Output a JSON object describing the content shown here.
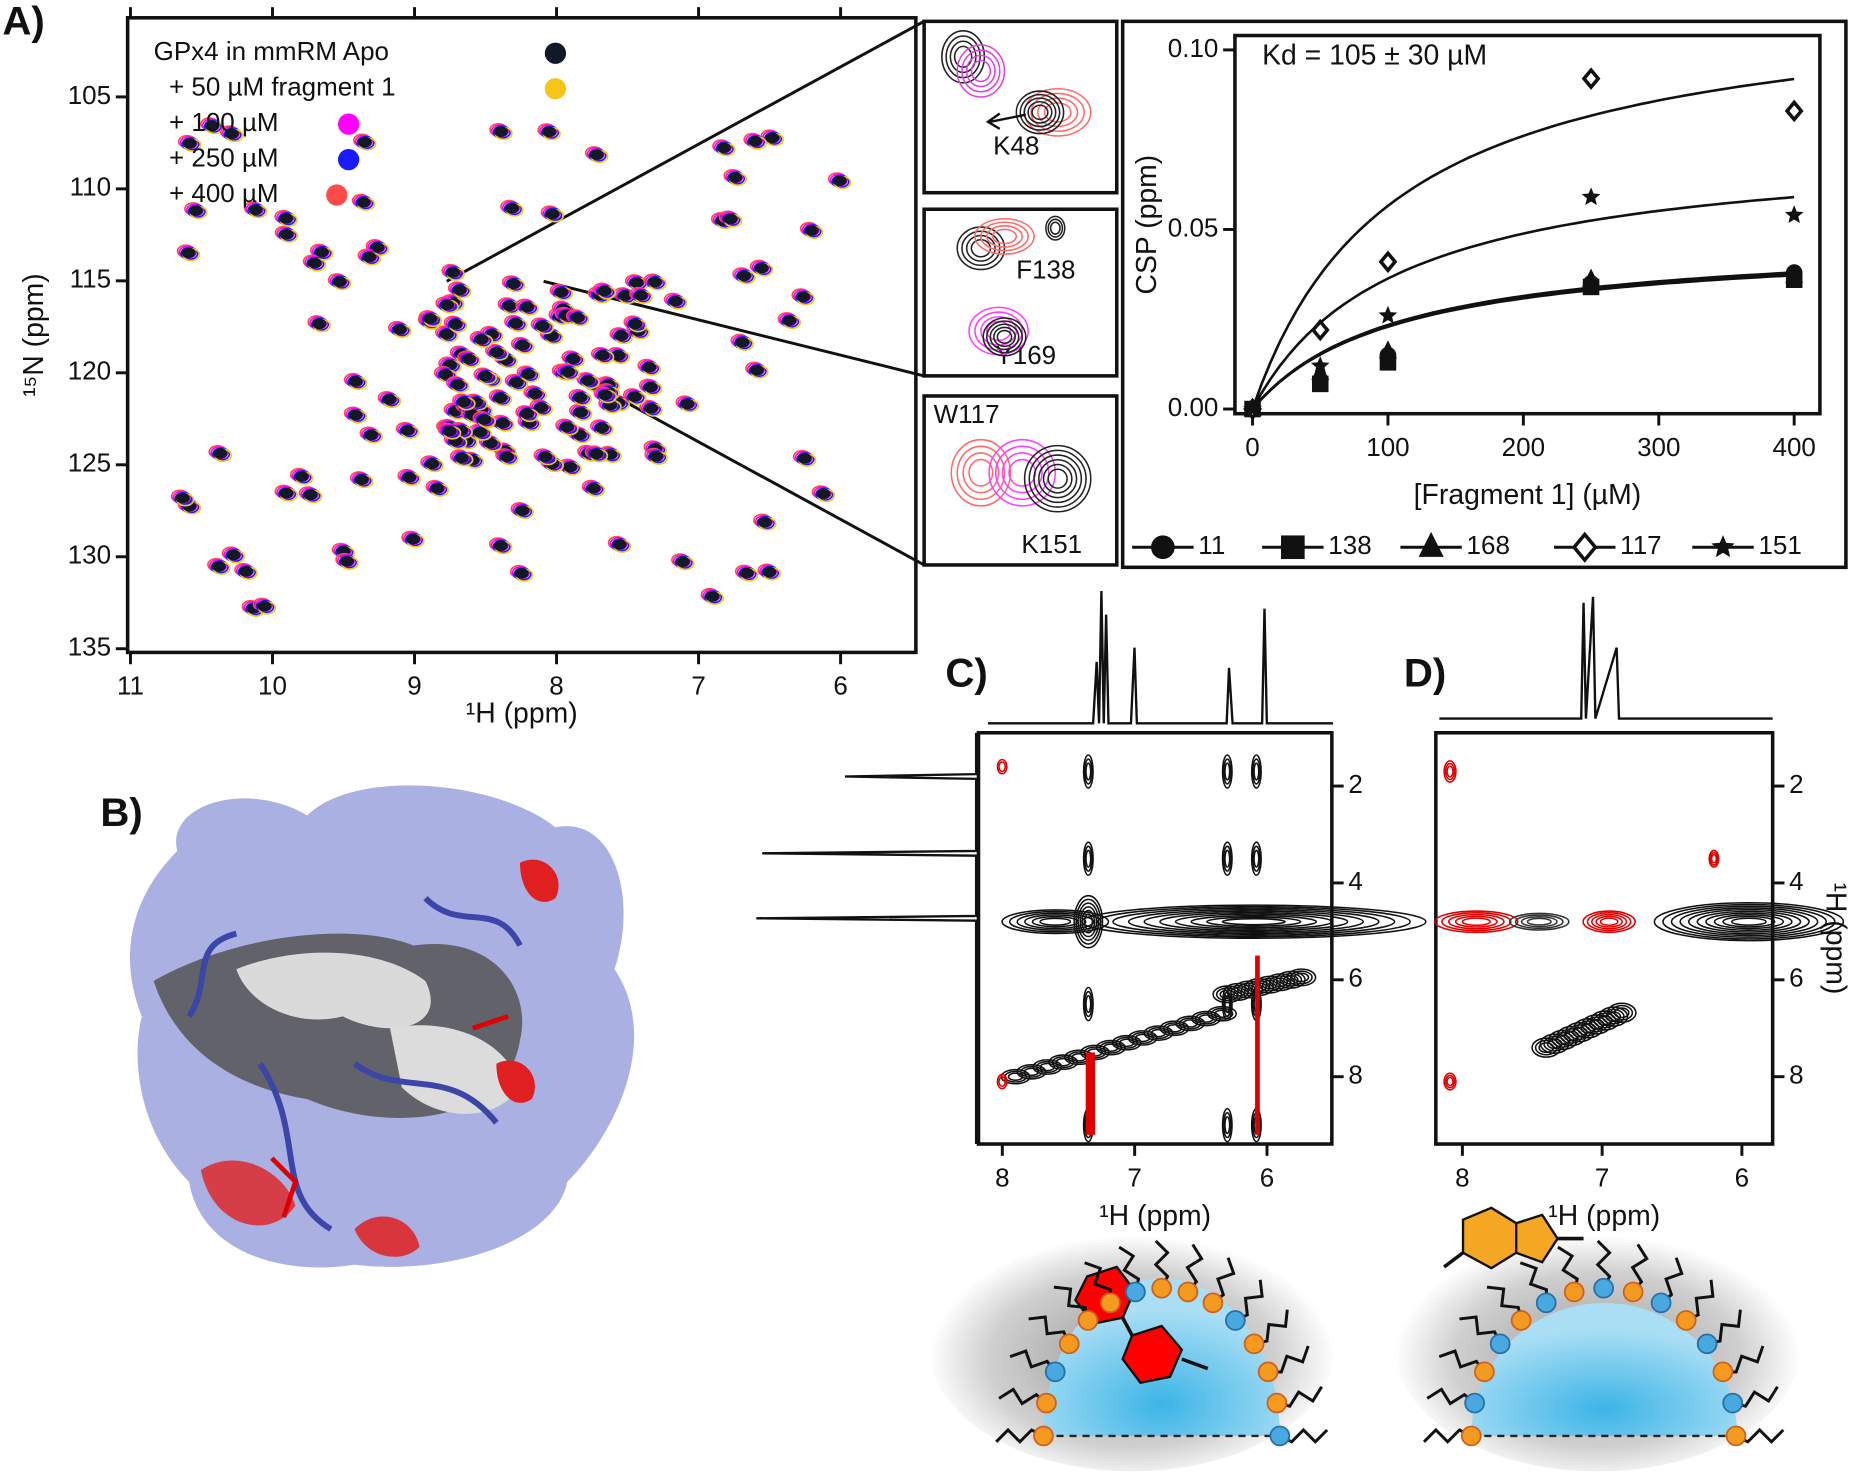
{
  "chart_data": [
    {
      "type": "contour",
      "panel": "A)",
      "xlabel": "¹H (ppm)",
      "ylabel": "¹⁵N (ppm)",
      "xlim": [
        11.02,
        5.47
      ],
      "xticks": [
        11,
        10,
        9,
        8,
        7,
        6
      ],
      "ylim": [
        100.7,
        135.2
      ],
      "yticks": [
        105,
        110,
        115,
        120,
        125,
        130,
        135
      ],
      "yreverse": true,
      "series": [
        {
          "name": "GPx4 in mmRM Apo",
          "color": "#111827"
        },
        {
          "name": "+ 50 µM fragment 1",
          "color": "#f5c518"
        },
        {
          "name": "+ 100 µM",
          "color": "#ff00ff"
        },
        {
          "name": "+ 250 µM",
          "color": "#1a1aff"
        },
        {
          "name": "+ 400 µM",
          "color": "#ff4a4a"
        }
      ],
      "insets": [
        "K48",
        "F138",
        "Y169",
        "W117",
        "K151"
      ]
    },
    {
      "type": "scatter",
      "annotation": "Kd = 105 ± 30 µM",
      "kd": 105,
      "xlabel": "[Fragment 1] (µM)",
      "ylabel": "CSP (ppm)",
      "xlim": [
        -13,
        419
      ],
      "xticks": [
        0,
        100,
        200,
        300,
        400
      ],
      "ylim": [
        -0.0013,
        0.104
      ],
      "yticks": [
        {
          "value": 0,
          "label": "0.00"
        },
        {
          "value": 0.05,
          "label": "0.05"
        },
        {
          "value": 0.1,
          "label": "0.10"
        }
      ],
      "x": [
        0,
        50,
        100,
        250,
        400
      ],
      "series": [
        {
          "name": "11",
          "marker": "circle",
          "values": [
            0,
            0.008,
            0.015,
            0.035,
            0.038
          ],
          "fit_max": 0.048
        },
        {
          "name": "138",
          "marker": "square",
          "values": [
            0,
            0.007,
            0.013,
            0.034,
            0.036
          ],
          "fit_max": 0.047
        },
        {
          "name": "168",
          "marker": "triangle",
          "values": [
            0,
            0.01,
            0.016,
            0.036,
            0.037
          ],
          "fit_max": 0.0475
        },
        {
          "name": "117",
          "marker": "diamond",
          "values": [
            0,
            0.022,
            0.041,
            0.092,
            0.083
          ],
          "fit_max": 0.116
        },
        {
          "name": "151",
          "marker": "star",
          "values": [
            0,
            0.012,
            0.026,
            0.059,
            0.054
          ],
          "fit_max": 0.0745
        }
      ]
    },
    {
      "type": "contour",
      "panel": "C)",
      "xlabel": "¹H (ppm)",
      "xlim": [
        8.18,
        5.51
      ],
      "xticks": [
        8,
        7,
        6
      ],
      "ylim": [
        0.9,
        9.39
      ],
      "yticks": [
        2,
        4,
        6,
        8
      ],
      "yreverse": true
    },
    {
      "type": "contour",
      "panel": "D)",
      "xlabel": "¹H (ppm)",
      "ylabel": "¹H (ppm)",
      "xlim": [
        8.19,
        5.78
      ],
      "xticks": [
        8,
        7,
        6
      ],
      "ylim": [
        0.9,
        9.39
      ],
      "yticks": [
        2,
        4,
        6,
        8
      ],
      "yreverse": true
    },
    {
      "type": "image",
      "panel": "B)"
    }
  ]
}
